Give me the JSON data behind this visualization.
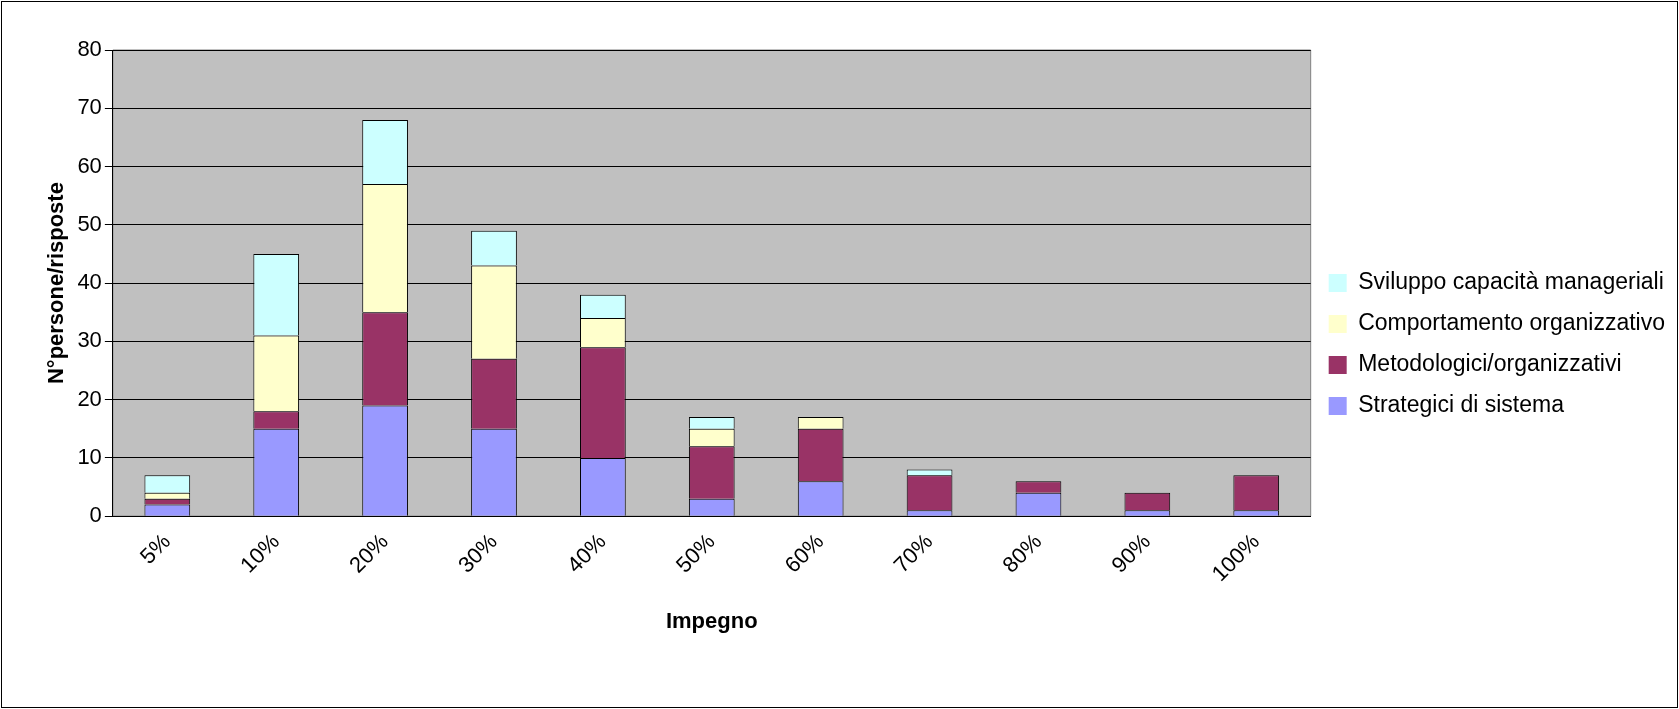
{
  "chart_data": {
    "type": "bar",
    "stacked": true,
    "xlabel": "Impegno",
    "ylabel": "N°persone/risposte",
    "categories": [
      "5%",
      "10%",
      "20%",
      "30%",
      "40%",
      "50%",
      "60%",
      "70%",
      "80%",
      "90%",
      "100%"
    ],
    "series": [
      {
        "name": "Strategici di sistema",
        "color": "#9999ff",
        "values": [
          2,
          15,
          19,
          15,
          10,
          3,
          6,
          1,
          4,
          1,
          1
        ]
      },
      {
        "name": "Metodologici/organizzativi",
        "color": "#993366",
        "values": [
          1,
          3,
          16,
          12,
          19,
          9,
          9,
          6,
          2,
          3,
          6
        ]
      },
      {
        "name": "Comportamento organizzativo",
        "color": "#ffffcc",
        "values": [
          1,
          13,
          22,
          16,
          5,
          3,
          2,
          0,
          0,
          0,
          0
        ]
      },
      {
        "name": "Sviluppo capacità manageriali",
        "color": "#ccffff",
        "values": [
          3,
          14,
          11,
          6,
          4,
          2,
          0,
          1,
          0,
          0,
          0
        ]
      }
    ],
    "ylim": [
      0,
      80
    ],
    "yticks": [
      0,
      10,
      20,
      30,
      40,
      50,
      60,
      70,
      80
    ],
    "grid": "y",
    "legend": "right"
  }
}
